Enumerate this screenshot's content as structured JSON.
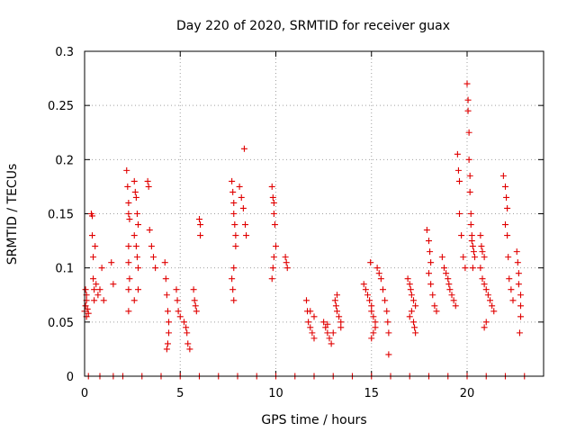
{
  "chart_data": {
    "type": "scatter",
    "title": "Day 220 of 2020, SRMTID for receiver guax",
    "xlabel": "GPS time / hours",
    "ylabel": "SRMTID / TECUs",
    "xlim": [
      0,
      24
    ],
    "ylim": [
      0,
      0.3
    ],
    "xticks": [
      0,
      5,
      10,
      15,
      20
    ],
    "xtick_labels": [
      "0",
      "5",
      "10",
      "15",
      "20"
    ],
    "yticks": [
      0,
      0.05,
      0.1,
      0.15,
      0.2,
      0.25,
      0.3
    ],
    "ytick_labels": [
      "0",
      "0.05",
      "0.1",
      "0.15",
      "0.2",
      "0.25",
      "0.3"
    ],
    "grid": true,
    "marker": "+",
    "color": "#e00000",
    "series": [
      {
        "name": "SRMTID",
        "points": [
          [
            0.0,
            0.06
          ],
          [
            0.05,
            0.065
          ],
          [
            0.1,
            0.07
          ],
          [
            0.1,
            0.055
          ],
          [
            0.15,
            0.062
          ],
          [
            0.2,
            0.058
          ],
          [
            0.05,
            0.08
          ],
          [
            0.1,
            0.075
          ],
          [
            0.35,
            0.15
          ],
          [
            0.4,
            0.148
          ],
          [
            0.4,
            0.13
          ],
          [
            0.45,
            0.11
          ],
          [
            0.45,
            0.09
          ],
          [
            0.5,
            0.08
          ],
          [
            0.5,
            0.07
          ],
          [
            0.55,
            0.12
          ],
          [
            0.6,
            0.085
          ],
          [
            0.7,
            0.075
          ],
          [
            0.8,
            0.08
          ],
          [
            0.9,
            0.1
          ],
          [
            1.0,
            0.07
          ],
          [
            1.4,
            0.105
          ],
          [
            1.5,
            0.085
          ],
          [
            2.2,
            0.19
          ],
          [
            2.25,
            0.175
          ],
          [
            2.3,
            0.16
          ],
          [
            2.3,
            0.15
          ],
          [
            2.35,
            0.145
          ],
          [
            2.3,
            0.12
          ],
          [
            2.3,
            0.105
          ],
          [
            2.35,
            0.09
          ],
          [
            2.3,
            0.08
          ],
          [
            2.3,
            0.06
          ],
          [
            2.6,
            0.18
          ],
          [
            2.65,
            0.17
          ],
          [
            2.7,
            0.165
          ],
          [
            2.75,
            0.15
          ],
          [
            2.8,
            0.14
          ],
          [
            2.6,
            0.13
          ],
          [
            2.7,
            0.12
          ],
          [
            2.75,
            0.11
          ],
          [
            2.8,
            0.1
          ],
          [
            2.8,
            0.08
          ],
          [
            2.6,
            0.07
          ],
          [
            3.3,
            0.18
          ],
          [
            3.35,
            0.175
          ],
          [
            3.4,
            0.135
          ],
          [
            3.5,
            0.12
          ],
          [
            3.6,
            0.11
          ],
          [
            3.7,
            0.1
          ],
          [
            4.2,
            0.105
          ],
          [
            4.25,
            0.09
          ],
          [
            4.3,
            0.075
          ],
          [
            4.35,
            0.06
          ],
          [
            4.4,
            0.05
          ],
          [
            4.4,
            0.04
          ],
          [
            4.35,
            0.03
          ],
          [
            4.3,
            0.025
          ],
          [
            4.8,
            0.08
          ],
          [
            4.85,
            0.07
          ],
          [
            4.9,
            0.06
          ],
          [
            5.0,
            0.055
          ],
          [
            5.2,
            0.05
          ],
          [
            5.3,
            0.045
          ],
          [
            5.35,
            0.04
          ],
          [
            5.4,
            0.03
          ],
          [
            5.5,
            0.025
          ],
          [
            5.7,
            0.08
          ],
          [
            5.75,
            0.07
          ],
          [
            5.8,
            0.065
          ],
          [
            5.85,
            0.06
          ],
          [
            6.0,
            0.145
          ],
          [
            6.05,
            0.14
          ],
          [
            6.05,
            0.13
          ],
          [
            7.7,
            0.18
          ],
          [
            7.75,
            0.17
          ],
          [
            7.8,
            0.16
          ],
          [
            7.8,
            0.15
          ],
          [
            7.85,
            0.14
          ],
          [
            7.9,
            0.13
          ],
          [
            7.9,
            0.12
          ],
          [
            7.8,
            0.1
          ],
          [
            7.7,
            0.09
          ],
          [
            7.75,
            0.08
          ],
          [
            7.8,
            0.07
          ],
          [
            8.1,
            0.175
          ],
          [
            8.2,
            0.165
          ],
          [
            8.3,
            0.155
          ],
          [
            8.35,
            0.21
          ],
          [
            8.4,
            0.14
          ],
          [
            8.45,
            0.13
          ],
          [
            9.8,
            0.175
          ],
          [
            9.85,
            0.165
          ],
          [
            9.9,
            0.16
          ],
          [
            9.9,
            0.15
          ],
          [
            9.95,
            0.14
          ],
          [
            10.0,
            0.12
          ],
          [
            9.9,
            0.11
          ],
          [
            9.85,
            0.1
          ],
          [
            9.8,
            0.09
          ],
          [
            10.5,
            0.11
          ],
          [
            10.55,
            0.105
          ],
          [
            10.6,
            0.1
          ],
          [
            11.6,
            0.07
          ],
          [
            11.65,
            0.06
          ],
          [
            11.7,
            0.05
          ],
          [
            11.8,
            0.045
          ],
          [
            11.9,
            0.04
          ],
          [
            12.0,
            0.035
          ],
          [
            12.0,
            0.055
          ],
          [
            11.8,
            0.06
          ],
          [
            12.5,
            0.05
          ],
          [
            12.6,
            0.045
          ],
          [
            12.7,
            0.04
          ],
          [
            12.8,
            0.035
          ],
          [
            12.9,
            0.03
          ],
          [
            13.0,
            0.04
          ],
          [
            12.7,
            0.048
          ],
          [
            13.1,
            0.07
          ],
          [
            13.15,
            0.065
          ],
          [
            13.2,
            0.06
          ],
          [
            13.3,
            0.055
          ],
          [
            13.4,
            0.05
          ],
          [
            13.2,
            0.075
          ],
          [
            13.4,
            0.045
          ],
          [
            14.6,
            0.085
          ],
          [
            14.7,
            0.08
          ],
          [
            14.8,
            0.075
          ],
          [
            14.9,
            0.07
          ],
          [
            15.0,
            0.065
          ],
          [
            15.0,
            0.06
          ],
          [
            15.1,
            0.055
          ],
          [
            15.2,
            0.05
          ],
          [
            15.2,
            0.045
          ],
          [
            15.1,
            0.04
          ],
          [
            15.0,
            0.035
          ],
          [
            14.95,
            0.105
          ],
          [
            15.3,
            0.1
          ],
          [
            15.4,
            0.095
          ],
          [
            15.5,
            0.09
          ],
          [
            15.6,
            0.08
          ],
          [
            15.7,
            0.07
          ],
          [
            15.8,
            0.06
          ],
          [
            15.85,
            0.05
          ],
          [
            15.9,
            0.04
          ],
          [
            15.9,
            0.02
          ],
          [
            16.9,
            0.09
          ],
          [
            17.0,
            0.085
          ],
          [
            17.05,
            0.08
          ],
          [
            17.1,
            0.075
          ],
          [
            17.2,
            0.07
          ],
          [
            17.3,
            0.065
          ],
          [
            17.1,
            0.06
          ],
          [
            17.0,
            0.055
          ],
          [
            17.2,
            0.05
          ],
          [
            17.25,
            0.045
          ],
          [
            17.3,
            0.04
          ],
          [
            17.9,
            0.135
          ],
          [
            18.0,
            0.125
          ],
          [
            18.05,
            0.115
          ],
          [
            18.1,
            0.105
          ],
          [
            18.0,
            0.095
          ],
          [
            18.1,
            0.085
          ],
          [
            18.2,
            0.075
          ],
          [
            18.3,
            0.065
          ],
          [
            18.4,
            0.06
          ],
          [
            18.7,
            0.11
          ],
          [
            18.8,
            0.1
          ],
          [
            18.9,
            0.095
          ],
          [
            19.0,
            0.09
          ],
          [
            19.05,
            0.085
          ],
          [
            19.1,
            0.08
          ],
          [
            19.2,
            0.075
          ],
          [
            19.3,
            0.07
          ],
          [
            19.4,
            0.065
          ],
          [
            19.5,
            0.205
          ],
          [
            19.55,
            0.19
          ],
          [
            19.6,
            0.18
          ],
          [
            19.6,
            0.15
          ],
          [
            19.7,
            0.13
          ],
          [
            19.8,
            0.11
          ],
          [
            19.9,
            0.1
          ],
          [
            20.0,
            0.27
          ],
          [
            20.05,
            0.255
          ],
          [
            20.05,
            0.245
          ],
          [
            20.1,
            0.225
          ],
          [
            20.1,
            0.2
          ],
          [
            20.15,
            0.185
          ],
          [
            20.15,
            0.17
          ],
          [
            20.2,
            0.15
          ],
          [
            20.2,
            0.14
          ],
          [
            20.25,
            0.13
          ],
          [
            20.25,
            0.125
          ],
          [
            20.3,
            0.12
          ],
          [
            20.35,
            0.115
          ],
          [
            20.4,
            0.11
          ],
          [
            20.3,
            0.1
          ],
          [
            20.7,
            0.13
          ],
          [
            20.75,
            0.12
          ],
          [
            20.8,
            0.115
          ],
          [
            20.9,
            0.11
          ],
          [
            20.7,
            0.1
          ],
          [
            20.8,
            0.09
          ],
          [
            20.9,
            0.085
          ],
          [
            21.0,
            0.08
          ],
          [
            21.1,
            0.075
          ],
          [
            21.2,
            0.07
          ],
          [
            21.3,
            0.065
          ],
          [
            21.4,
            0.06
          ],
          [
            21.0,
            0.05
          ],
          [
            20.9,
            0.045
          ],
          [
            21.9,
            0.185
          ],
          [
            22.0,
            0.175
          ],
          [
            22.05,
            0.165
          ],
          [
            22.1,
            0.155
          ],
          [
            22.0,
            0.14
          ],
          [
            22.1,
            0.13
          ],
          [
            22.15,
            0.11
          ],
          [
            22.2,
            0.09
          ],
          [
            22.3,
            0.08
          ],
          [
            22.4,
            0.07
          ],
          [
            22.6,
            0.115
          ],
          [
            22.65,
            0.105
          ],
          [
            22.7,
            0.095
          ],
          [
            22.7,
            0.085
          ],
          [
            22.8,
            0.075
          ],
          [
            22.8,
            0.065
          ],
          [
            22.8,
            0.055
          ],
          [
            22.75,
            0.04
          ],
          [
            0.2,
            0
          ],
          [
            0.8,
            0
          ],
          [
            1.5,
            0
          ],
          [
            2.0,
            0
          ],
          [
            3.0,
            0
          ],
          [
            4.0,
            0
          ],
          [
            5.0,
            0
          ],
          [
            6.0,
            0
          ],
          [
            7.0,
            0
          ],
          [
            8.0,
            0
          ],
          [
            9.0,
            0
          ],
          [
            10.0,
            0
          ],
          [
            11.0,
            0
          ],
          [
            12.0,
            0
          ],
          [
            13.0,
            0
          ],
          [
            14.0,
            0
          ],
          [
            15.0,
            0
          ],
          [
            16.0,
            0
          ],
          [
            17.0,
            0
          ],
          [
            18.0,
            0
          ],
          [
            19.0,
            0
          ],
          [
            20.0,
            0
          ],
          [
            21.0,
            0
          ],
          [
            22.0,
            0
          ],
          [
            23.0,
            0
          ]
        ]
      }
    ]
  }
}
